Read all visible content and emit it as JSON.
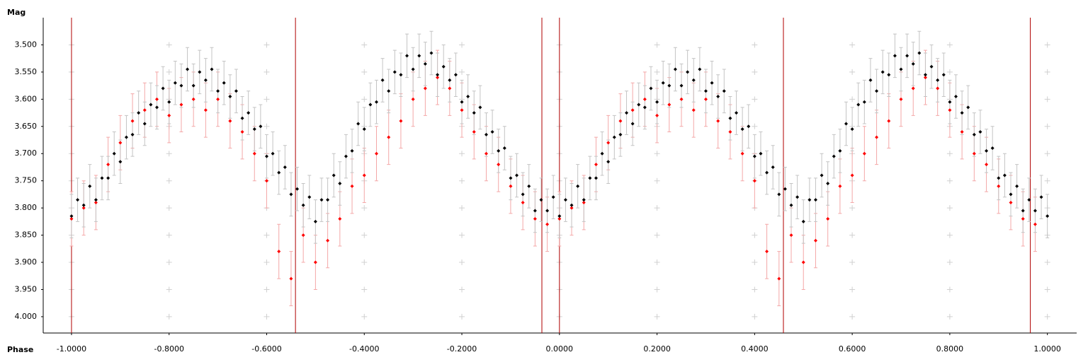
{
  "chart_data": {
    "type": "scatter",
    "ylabel": "Mag",
    "xlabel": "Phase",
    "xlim": [
      -1.058,
      1.06
    ],
    "ylim": [
      4.03,
      3.45
    ],
    "xticks": [
      {
        "value": -1.0,
        "label": "-1.0000"
      },
      {
        "value": -0.8,
        "label": "-0.8000"
      },
      {
        "value": -0.6,
        "label": "-0.6000"
      },
      {
        "value": -0.4,
        "label": "-0.4000"
      },
      {
        "value": -0.2,
        "label": "-0.2000"
      },
      {
        "value": 0,
        "label": "0.0000"
      },
      {
        "value": 0.2,
        "label": "0.2000"
      },
      {
        "value": 0.4,
        "label": "0.4000"
      },
      {
        "value": 0.6,
        "label": "0.6000"
      },
      {
        "value": 0.8,
        "label": "0.8000"
      },
      {
        "value": 1.0,
        "label": "1.0000"
      }
    ],
    "yticks": [
      {
        "value": 3.5,
        "label": "3.500"
      },
      {
        "value": 3.55,
        "label": "3.550"
      },
      {
        "value": 3.6,
        "label": "3.600"
      },
      {
        "value": 3.65,
        "label": "3.650"
      },
      {
        "value": 3.7,
        "label": "3.700"
      },
      {
        "value": 3.75,
        "label": "3.750"
      },
      {
        "value": 3.8,
        "label": "3.800"
      },
      {
        "value": 3.85,
        "label": "3.850"
      },
      {
        "value": 3.9,
        "label": "3.900"
      },
      {
        "value": 3.95,
        "label": "3.950"
      },
      {
        "value": 4.0,
        "label": "4.000"
      }
    ],
    "grid": true,
    "grid_color": "#d0d0d0",
    "markers": [
      -1.0,
      -0.541,
      -0.036,
      0,
      0.459,
      0.965
    ],
    "marker_color": "#b00000",
    "series": [
      {
        "color": "#ff0000",
        "error_color": "#f4a8a8",
        "error": 0.05,
        "x": [
          -1,
          -0.975,
          -0.95,
          -0.925,
          -0.9,
          -0.875,
          -0.85,
          -0.825,
          -0.8,
          -0.775,
          -0.75,
          -0.725,
          -0.7,
          -0.675,
          -0.65,
          -0.625,
          -0.6,
          -0.575,
          -0.55,
          -0.525,
          -0.5,
          -0.475,
          -0.45,
          -0.425,
          -0.4,
          -0.375,
          -0.35,
          -0.325,
          -0.3,
          -0.275,
          -0.25,
          -0.225,
          -0.2,
          -0.175,
          -0.15,
          -0.125,
          -0.1,
          -0.075,
          -0.05,
          -0.025,
          0,
          0.025,
          0.05,
          0.075,
          0.1,
          0.125,
          0.15,
          0.175,
          0.2,
          0.225,
          0.25,
          0.275,
          0.3,
          0.325,
          0.35,
          0.375,
          0.4,
          0.425,
          0.45,
          0.475,
          0.5,
          0.525,
          0.55,
          0.575,
          0.6,
          0.625,
          0.65,
          0.675,
          0.7,
          0.725,
          0.75,
          0.775,
          0.8,
          0.825,
          0.85,
          0.875,
          0.9,
          0.925,
          0.95,
          0.975
        ],
        "values": [
          3.82,
          3.8,
          3.79,
          3.72,
          3.68,
          3.64,
          3.62,
          3.6,
          3.63,
          3.61,
          3.6,
          3.62,
          3.6,
          3.64,
          3.66,
          3.7,
          3.75,
          3.88,
          3.93,
          3.85,
          3.9,
          3.86,
          3.82,
          3.76,
          3.74,
          3.7,
          3.67,
          3.64,
          3.6,
          3.58,
          3.56,
          3.58,
          3.62,
          3.66,
          3.7,
          3.72,
          3.76,
          3.79,
          3.82,
          3.83,
          3.82,
          3.8,
          3.79,
          3.72,
          3.68,
          3.64,
          3.62,
          3.6,
          3.63,
          3.61,
          3.6,
          3.62,
          3.6,
          3.64,
          3.66,
          3.7,
          3.75,
          3.88,
          3.93,
          3.85,
          3.9,
          3.86,
          3.82,
          3.76,
          3.74,
          3.7,
          3.67,
          3.64,
          3.6,
          3.58,
          3.56,
          3.58,
          3.62,
          3.66,
          3.7,
          3.72,
          3.76,
          3.79,
          3.82,
          3.83
        ]
      },
      {
        "color": "#000000",
        "error_color": "#c4c4c4",
        "error": 0.04,
        "x": [
          -1,
          -0.9875,
          -0.975,
          -0.9625,
          -0.95,
          -0.9375,
          -0.925,
          -0.9125,
          -0.9,
          -0.8875,
          -0.875,
          -0.8625,
          -0.85,
          -0.8375,
          -0.825,
          -0.8125,
          -0.8,
          -0.7875,
          -0.775,
          -0.7625,
          -0.75,
          -0.7375,
          -0.725,
          -0.7125,
          -0.7,
          -0.6875,
          -0.675,
          -0.6625,
          -0.65,
          -0.6375,
          -0.625,
          -0.6125,
          -0.6,
          -0.5875,
          -0.575,
          -0.5625,
          -0.55,
          -0.5375,
          -0.525,
          -0.5125,
          -0.5,
          -0.4875,
          -0.475,
          -0.4625,
          -0.45,
          -0.4375,
          -0.425,
          -0.4125,
          -0.4,
          -0.3875,
          -0.375,
          -0.3625,
          -0.35,
          -0.3375,
          -0.325,
          -0.3125,
          -0.3,
          -0.2875,
          -0.275,
          -0.2625,
          -0.25,
          -0.2375,
          -0.225,
          -0.2125,
          -0.2,
          -0.1875,
          -0.175,
          -0.1625,
          -0.15,
          -0.1375,
          -0.125,
          -0.1125,
          -0.1,
          -0.0875,
          -0.075,
          -0.0625,
          -0.05,
          -0.0375,
          -0.025,
          -0.0125,
          0,
          0.0125,
          0.025,
          0.0375,
          0.05,
          0.0625,
          0.075,
          0.0875,
          0.1,
          0.1125,
          0.125,
          0.1375,
          0.15,
          0.1625,
          0.175,
          0.1875,
          0.2,
          0.2125,
          0.225,
          0.2375,
          0.25,
          0.2625,
          0.275,
          0.2875,
          0.3,
          0.3125,
          0.325,
          0.3375,
          0.35,
          0.3625,
          0.375,
          0.3875,
          0.4,
          0.4125,
          0.425,
          0.4375,
          0.45,
          0.4625,
          0.475,
          0.4875,
          0.5,
          0.5125,
          0.525,
          0.5375,
          0.55,
          0.5625,
          0.575,
          0.5875,
          0.6,
          0.6125,
          0.625,
          0.6375,
          0.65,
          0.6625,
          0.675,
          0.6875,
          0.7,
          0.7125,
          0.725,
          0.7375,
          0.75,
          0.7625,
          0.775,
          0.7875,
          0.8,
          0.8125,
          0.825,
          0.8375,
          0.85,
          0.8625,
          0.875,
          0.8875,
          0.9,
          0.9125,
          0.925,
          0.9375,
          0.95,
          0.9625,
          0.975,
          0.9875,
          1
        ],
        "values": [
          3.815,
          3.785,
          3.795,
          3.76,
          3.785,
          3.745,
          3.745,
          3.7,
          3.715,
          3.67,
          3.665,
          3.625,
          3.645,
          3.61,
          3.615,
          3.58,
          3.605,
          3.57,
          3.575,
          3.545,
          3.575,
          3.55,
          3.565,
          3.545,
          3.585,
          3.57,
          3.595,
          3.585,
          3.635,
          3.625,
          3.655,
          3.65,
          3.705,
          3.7,
          3.735,
          3.725,
          3.775,
          3.765,
          3.795,
          3.78,
          3.825,
          3.785,
          3.785,
          3.74,
          3.755,
          3.705,
          3.695,
          3.645,
          3.655,
          3.61,
          3.605,
          3.565,
          3.585,
          3.55,
          3.555,
          3.52,
          3.545,
          3.52,
          3.535,
          3.515,
          3.555,
          3.54,
          3.565,
          3.555,
          3.605,
          3.595,
          3.625,
          3.615,
          3.665,
          3.66,
          3.695,
          3.69,
          3.745,
          3.74,
          3.775,
          3.76,
          3.805,
          3.785,
          3.805,
          3.78,
          3.815,
          3.785,
          3.795,
          3.76,
          3.785,
          3.745,
          3.745,
          3.7,
          3.715,
          3.67,
          3.665,
          3.625,
          3.645,
          3.61,
          3.615,
          3.58,
          3.605,
          3.57,
          3.575,
          3.545,
          3.575,
          3.55,
          3.565,
          3.545,
          3.585,
          3.57,
          3.595,
          3.585,
          3.635,
          3.625,
          3.655,
          3.65,
          3.705,
          3.7,
          3.735,
          3.725,
          3.775,
          3.765,
          3.795,
          3.78,
          3.825,
          3.785,
          3.785,
          3.74,
          3.755,
          3.705,
          3.695,
          3.645,
          3.655,
          3.61,
          3.605,
          3.565,
          3.585,
          3.55,
          3.555,
          3.52,
          3.545,
          3.52,
          3.535,
          3.515,
          3.555,
          3.54,
          3.565,
          3.555,
          3.605,
          3.595,
          3.625,
          3.615,
          3.665,
          3.66,
          3.695,
          3.69,
          3.745,
          3.74,
          3.775,
          3.76,
          3.805,
          3.785,
          3.805,
          3.78,
          3.815
        ]
      }
    ]
  }
}
